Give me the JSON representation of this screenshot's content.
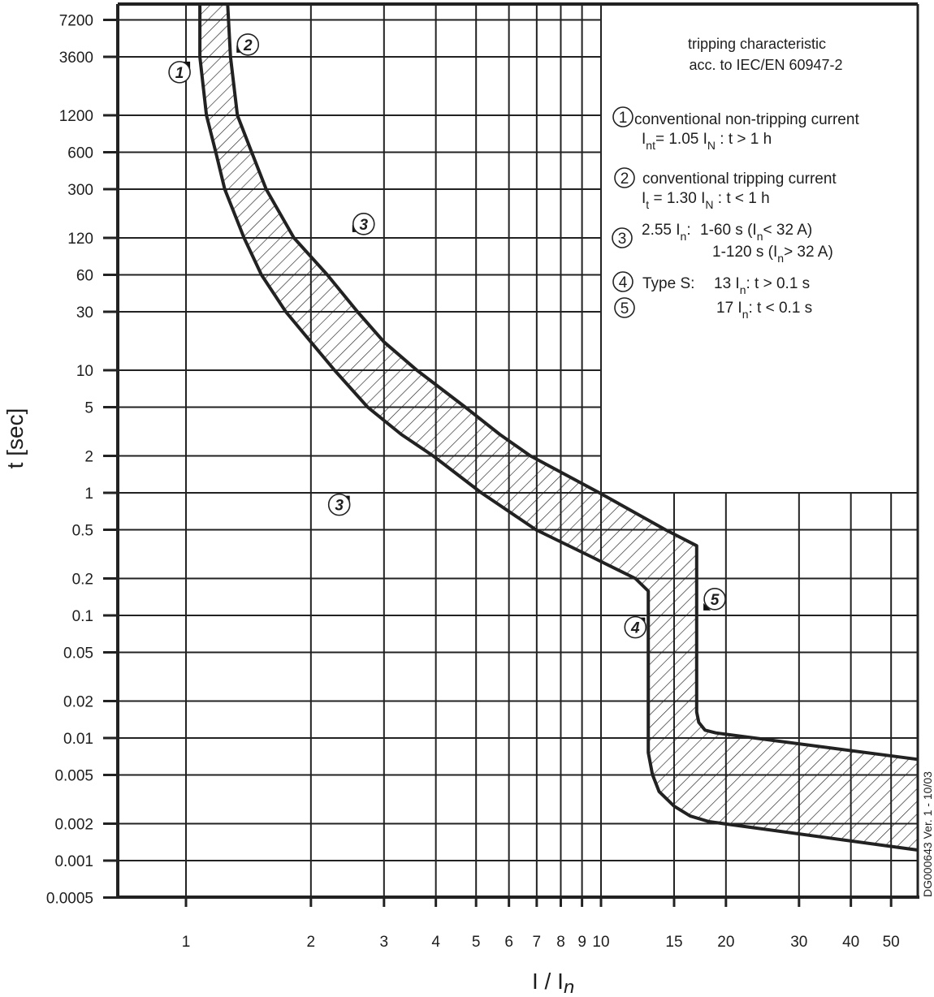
{
  "chart_data": {
    "type": "line",
    "title": [
      "tripping characteristic",
      "acc. to IEC/EN 60947-2"
    ],
    "xlabel": {
      "main": "I / I",
      "sub": "n"
    },
    "ylabel": "t [sec]",
    "x_scale": "log",
    "y_scale": "log",
    "xlim": [
      0.685,
      58
    ],
    "ylim": [
      0.0005,
      10000
    ],
    "grid": true,
    "x_ticks": [
      1,
      2,
      3,
      4,
      5,
      6,
      7,
      8,
      9,
      10,
      15,
      20,
      30,
      40,
      50
    ],
    "x_tick_labels": [
      "1",
      "2",
      "3",
      "4",
      "5",
      "6",
      "7",
      "8",
      "9",
      "10",
      "15",
      "20",
      "30",
      "40",
      "50"
    ],
    "y_ticks": [
      7200,
      3600,
      1200,
      600,
      300,
      120,
      60,
      30,
      10,
      5,
      2,
      1,
      0.5,
      0.2,
      0.1,
      0.05,
      0.02,
      0.01,
      0.005,
      0.002,
      0.001,
      0.0005
    ],
    "y_tick_labels": [
      "7200",
      "3600",
      "1200",
      "600",
      "300",
      "120",
      "60",
      "30",
      "10",
      "5",
      "2",
      "1",
      "0.5",
      "0.2",
      "0.1",
      "0.05",
      "0.02",
      "0.01",
      "0.005",
      "0.002",
      "0.001",
      "0.0005"
    ],
    "band_fill": "hatched",
    "line_color": "#222222",
    "lower_boundary": [
      [
        1.08,
        9700
      ],
      [
        1.08,
        3600
      ],
      [
        1.12,
        1200
      ],
      [
        1.18,
        600
      ],
      [
        1.24,
        300
      ],
      [
        1.38,
        120
      ],
      [
        1.52,
        60
      ],
      [
        1.74,
        30
      ],
      [
        2.0,
        17
      ],
      [
        2.28,
        10
      ],
      [
        2.74,
        5
      ],
      [
        3.3,
        3
      ],
      [
        3.94,
        2
      ],
      [
        5.15,
        1
      ],
      [
        6.97,
        0.5
      ],
      [
        9.5,
        0.3
      ],
      [
        12.1,
        0.2
      ],
      [
        13.0,
        0.158
      ],
      [
        13.0,
        0.0076
      ],
      [
        13.3,
        0.00504
      ],
      [
        13.8,
        0.00366
      ],
      [
        15.0,
        0.00278
      ],
      [
        16.4,
        0.00231
      ],
      [
        18.2,
        0.00208
      ],
      [
        58,
        0.00122
      ]
    ],
    "upper_boundary": [
      [
        1.26,
        9700
      ],
      [
        1.28,
        3600
      ],
      [
        1.33,
        1200
      ],
      [
        1.44,
        600
      ],
      [
        1.56,
        300
      ],
      [
        1.82,
        120
      ],
      [
        2.19,
        60
      ],
      [
        2.59,
        30
      ],
      [
        3.0,
        17
      ],
      [
        3.6,
        10
      ],
      [
        4.71,
        5
      ],
      [
        5.7,
        3
      ],
      [
        6.76,
        2
      ],
      [
        9.91,
        1
      ],
      [
        14.3,
        0.5
      ],
      [
        17.0,
        0.37
      ],
      [
        17.0,
        0.0163
      ],
      [
        17.2,
        0.0134
      ],
      [
        17.8,
        0.0116
      ],
      [
        18.9,
        0.011
      ],
      [
        58,
        0.0067
      ]
    ],
    "markers": [
      {
        "label": "1",
        "x": 0.965,
        "y": 2700
      },
      {
        "label": "2",
        "x": 1.41,
        "y": 4530
      },
      {
        "label": "3",
        "x": 2.68,
        "y": 156
      },
      {
        "label": "3",
        "x": 2.34,
        "y": 0.8
      },
      {
        "label": "4",
        "x": 12.1,
        "y": 0.08
      },
      {
        "label": "5",
        "x": 18.8,
        "y": 0.136
      }
    ],
    "legend": {
      "item1": {
        "num": "1",
        "l1": "conventional non-tripping current",
        "a": "I",
        "a_sub": "nt",
        "b": "= 1.05 I",
        "b_sub": "N",
        "c": " : t > 1 h"
      },
      "item2": {
        "num": "2",
        "l1": "conventional tripping current",
        "a": "I",
        "a_sub": "t",
        "b": " = 1.30 I",
        "b_sub": "N",
        "c": " : t < 1 h"
      },
      "item3": {
        "num": "3",
        "a": "2.55 I",
        "a_sub": "n",
        "b": ":",
        "r1a": "1-60 s (I",
        "r1_sub": "n",
        "r1b": "< 32 A)",
        "r2a": "1-120 s (I",
        "r2_sub": "n",
        "r2b": "> 32 A)"
      },
      "item4": {
        "num": "4",
        "a": "Type S:",
        "b": "13 I",
        "b_sub": "n",
        "c": ": t > 0.1 s"
      },
      "item5": {
        "num": "5",
        "b": "17 I",
        "b_sub": "n",
        "c": ": t < 0.1 s"
      }
    },
    "version_note": "DG000643  Ver. 1 - 10/03"
  }
}
